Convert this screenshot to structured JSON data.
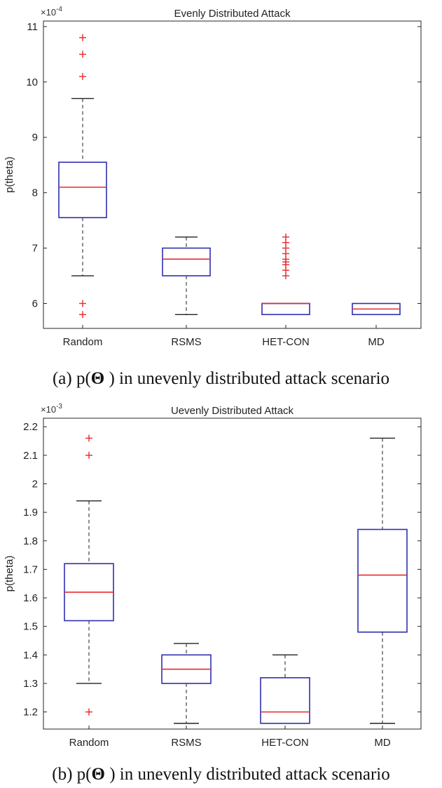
{
  "chart_data": [
    {
      "type": "boxplot",
      "title": "Evenly Distributed Attack",
      "ylabel": "p(theta)",
      "scale_label": "×10",
      "scale_exponent": "-4",
      "ylim": [
        5.55,
        11.1
      ],
      "yticks": [
        6,
        7,
        8,
        9,
        10,
        11
      ],
      "ytick_labels": [
        "6",
        "7",
        "8",
        "9",
        "10",
        "11"
      ],
      "categories": [
        "Random",
        "RSMS",
        "HET-CON",
        "MD"
      ],
      "boxes": [
        {
          "name": "Random",
          "whisker_low": 6.5,
          "q1": 7.55,
          "median": 8.1,
          "q3": 8.55,
          "whisker_high": 9.7,
          "outliers": [
            10.8,
            10.5,
            10.1,
            6.0,
            5.8
          ]
        },
        {
          "name": "RSMS",
          "whisker_low": 5.8,
          "q1": 6.5,
          "median": 6.8,
          "q3": 7.0,
          "whisker_high": 7.2,
          "outliers": []
        },
        {
          "name": "HET-CON",
          "whisker_low": 5.8,
          "q1": 5.8,
          "median": 6.0,
          "q3": 6.0,
          "whisker_high": 6.0,
          "outliers": [
            7.2,
            7.1,
            7.0,
            6.9,
            6.8,
            6.75,
            6.7,
            6.6,
            6.5
          ]
        },
        {
          "name": "MD",
          "whisker_low": 5.8,
          "q1": 5.8,
          "median": 5.9,
          "q3": 6.0,
          "whisker_high": 6.0,
          "outliers": []
        }
      ],
      "caption": {
        "prefix": "(a) p(",
        "symbol": "Θ",
        "suffix": " ) in unevenly distributed attack scenario"
      }
    },
    {
      "type": "boxplot",
      "title": "Uevenly Distributed Attack",
      "ylabel": "p(theta)",
      "scale_label": "×10",
      "scale_exponent": "-3",
      "ylim": [
        1.14,
        2.23
      ],
      "yticks": [
        1.2,
        1.3,
        1.4,
        1.5,
        1.6,
        1.7,
        1.8,
        1.9,
        2.0,
        2.1,
        2.2
      ],
      "ytick_labels": [
        "1.2",
        "1.3",
        "1.4",
        "1.5",
        "1.6",
        "1.7",
        "1.8",
        "1.9",
        "2",
        "2.1",
        "2.2"
      ],
      "categories": [
        "Random",
        "RSMS",
        "HET-CON",
        "MD"
      ],
      "boxes": [
        {
          "name": "Random",
          "whisker_low": 1.3,
          "q1": 1.52,
          "median": 1.62,
          "q3": 1.72,
          "whisker_high": 1.94,
          "outliers": [
            2.16,
            2.1,
            1.2
          ]
        },
        {
          "name": "RSMS",
          "whisker_low": 1.16,
          "q1": 1.3,
          "median": 1.35,
          "q3": 1.4,
          "whisker_high": 1.44,
          "outliers": []
        },
        {
          "name": "HET-CON",
          "whisker_low": 1.16,
          "q1": 1.16,
          "median": 1.2,
          "q3": 1.32,
          "whisker_high": 1.4,
          "outliers": []
        },
        {
          "name": "MD",
          "whisker_low": 1.16,
          "q1": 1.48,
          "median": 1.68,
          "q3": 1.84,
          "whisker_high": 2.16,
          "outliers": []
        }
      ],
      "caption": {
        "prefix": "(b) p(",
        "symbol": "Θ",
        "suffix": " ) in unevenly distributed attack scenario"
      }
    }
  ]
}
